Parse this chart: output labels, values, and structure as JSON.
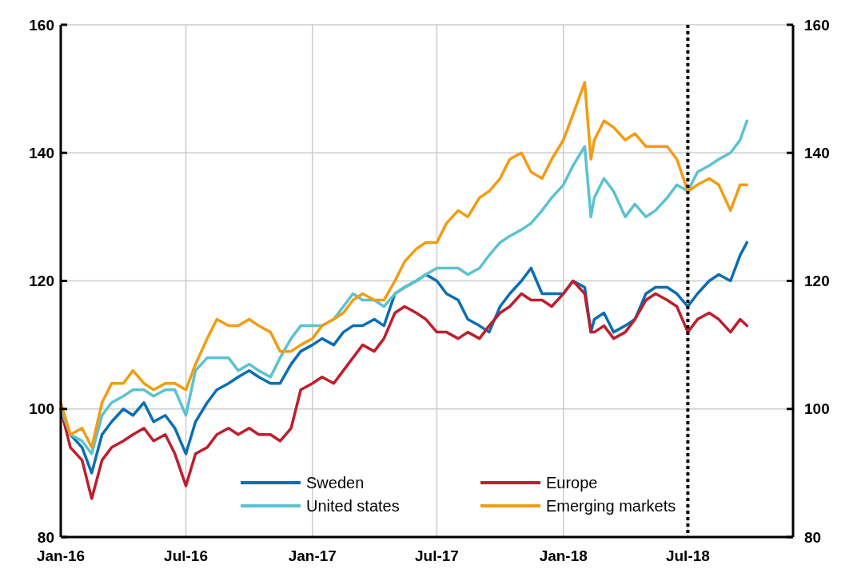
{
  "chart_data": {
    "type": "line",
    "x": [
      "2016-01-01",
      "2016-01-15",
      "2016-02-01",
      "2016-02-15",
      "2016-03-01",
      "2016-03-15",
      "2016-04-01",
      "2016-04-15",
      "2016-05-01",
      "2016-05-15",
      "2016-06-01",
      "2016-06-15",
      "2016-07-01",
      "2016-07-15",
      "2016-08-01",
      "2016-08-15",
      "2016-09-01",
      "2016-09-15",
      "2016-10-01",
      "2016-10-15",
      "2016-11-01",
      "2016-11-15",
      "2016-12-01",
      "2016-12-15",
      "2017-01-01",
      "2017-01-15",
      "2017-02-01",
      "2017-02-15",
      "2017-03-01",
      "2017-03-15",
      "2017-04-01",
      "2017-04-15",
      "2017-05-01",
      "2017-05-15",
      "2017-06-01",
      "2017-06-15",
      "2017-07-01",
      "2017-07-15",
      "2017-08-01",
      "2017-08-15",
      "2017-09-01",
      "2017-09-15",
      "2017-10-01",
      "2017-10-15",
      "2017-11-01",
      "2017-11-15",
      "2017-12-01",
      "2017-12-15",
      "2018-01-01",
      "2018-01-15",
      "2018-02-01",
      "2018-02-10",
      "2018-02-15",
      "2018-03-01",
      "2018-03-15",
      "2018-04-01",
      "2018-04-15",
      "2018-05-01",
      "2018-05-15",
      "2018-06-01",
      "2018-06-15",
      "2018-07-01",
      "2018-07-15",
      "2018-08-01",
      "2018-08-15",
      "2018-09-01",
      "2018-09-15",
      "2018-09-25"
    ],
    "series": [
      {
        "name": "Sweden",
        "color": "#0a6eb4",
        "values": [
          100,
          96,
          94,
          90,
          96,
          98,
          100,
          99,
          101,
          98,
          99,
          97,
          93,
          98,
          101,
          103,
          104,
          105,
          106,
          105,
          104,
          104,
          107,
          109,
          110,
          111,
          110,
          112,
          113,
          113,
          114,
          113,
          118,
          119,
          120,
          121,
          120,
          118,
          117,
          114,
          113,
          112,
          116,
          118,
          120,
          122,
          118,
          118,
          118,
          120,
          119,
          112,
          114,
          115,
          112,
          113,
          114,
          118,
          119,
          119,
          118,
          116,
          118,
          120,
          121,
          120,
          124,
          126
        ]
      },
      {
        "name": "Europe",
        "color": "#be1e2d",
        "values": [
          100,
          94,
          92,
          86,
          92,
          94,
          95,
          96,
          97,
          95,
          96,
          93,
          88,
          93,
          94,
          96,
          97,
          96,
          97,
          96,
          96,
          95,
          97,
          103,
          104,
          105,
          104,
          106,
          108,
          110,
          109,
          111,
          115,
          116,
          115,
          114,
          112,
          112,
          111,
          112,
          111,
          113,
          115,
          116,
          118,
          117,
          117,
          116,
          118,
          120,
          118,
          112,
          112,
          113,
          111,
          112,
          114,
          117,
          118,
          117,
          116,
          112,
          114,
          115,
          114,
          112,
          114,
          113
        ]
      },
      {
        "name": "United states",
        "color": "#5bc2d0",
        "values": [
          100,
          96,
          95,
          93,
          99,
          101,
          102,
          103,
          103,
          102,
          103,
          103,
          99,
          106,
          108,
          108,
          108,
          106,
          107,
          106,
          105,
          108,
          111,
          113,
          113,
          113,
          114,
          116,
          118,
          117,
          117,
          116,
          118,
          119,
          120,
          121,
          122,
          122,
          122,
          121,
          122,
          124,
          126,
          127,
          128,
          129,
          131,
          133,
          135,
          138,
          141,
          130,
          133,
          136,
          134,
          130,
          132,
          130,
          131,
          133,
          135,
          134,
          137,
          138,
          139,
          140,
          142,
          145
        ]
      },
      {
        "name": "Emerging markets",
        "color": "#f39c12",
        "values": [
          101,
          96,
          97,
          94,
          101,
          104,
          104,
          106,
          104,
          103,
          104,
          104,
          103,
          107,
          111,
          114,
          113,
          113,
          114,
          113,
          112,
          109,
          109,
          110,
          111,
          113,
          114,
          115,
          117,
          118,
          117,
          117,
          120,
          123,
          125,
          126,
          126,
          129,
          131,
          130,
          133,
          134,
          136,
          139,
          140,
          137,
          136,
          139,
          142,
          146,
          151,
          139,
          142,
          145,
          144,
          142,
          143,
          141,
          141,
          141,
          139,
          134,
          135,
          136,
          135,
          131,
          135,
          135
        ]
      }
    ],
    "xlim": [
      "2016-01-01",
      "2018-12-01"
    ],
    "xticks": [
      {
        "value": "2016-01-01",
        "label": "Jan-16"
      },
      {
        "value": "2016-07-01",
        "label": "Jul-16"
      },
      {
        "value": "2017-01-01",
        "label": "Jan-17"
      },
      {
        "value": "2017-07-01",
        "label": "Jul-17"
      },
      {
        "value": "2018-01-01",
        "label": "Jan-18"
      },
      {
        "value": "2018-07-01",
        "label": "Jul-18"
      }
    ],
    "ylim": [
      80,
      160
    ],
    "yticks": [
      80,
      100,
      120,
      140,
      160
    ],
    "y2lim": [
      80,
      160
    ],
    "y2ticks": [
      80,
      100,
      120,
      140,
      160
    ],
    "ref_lines": [
      {
        "axis": "x",
        "value": "2018-07-01",
        "color": "#000000",
        "line_style": "dotted"
      }
    ],
    "grid": true,
    "legend": "bottom right",
    "line_style": "solid"
  }
}
